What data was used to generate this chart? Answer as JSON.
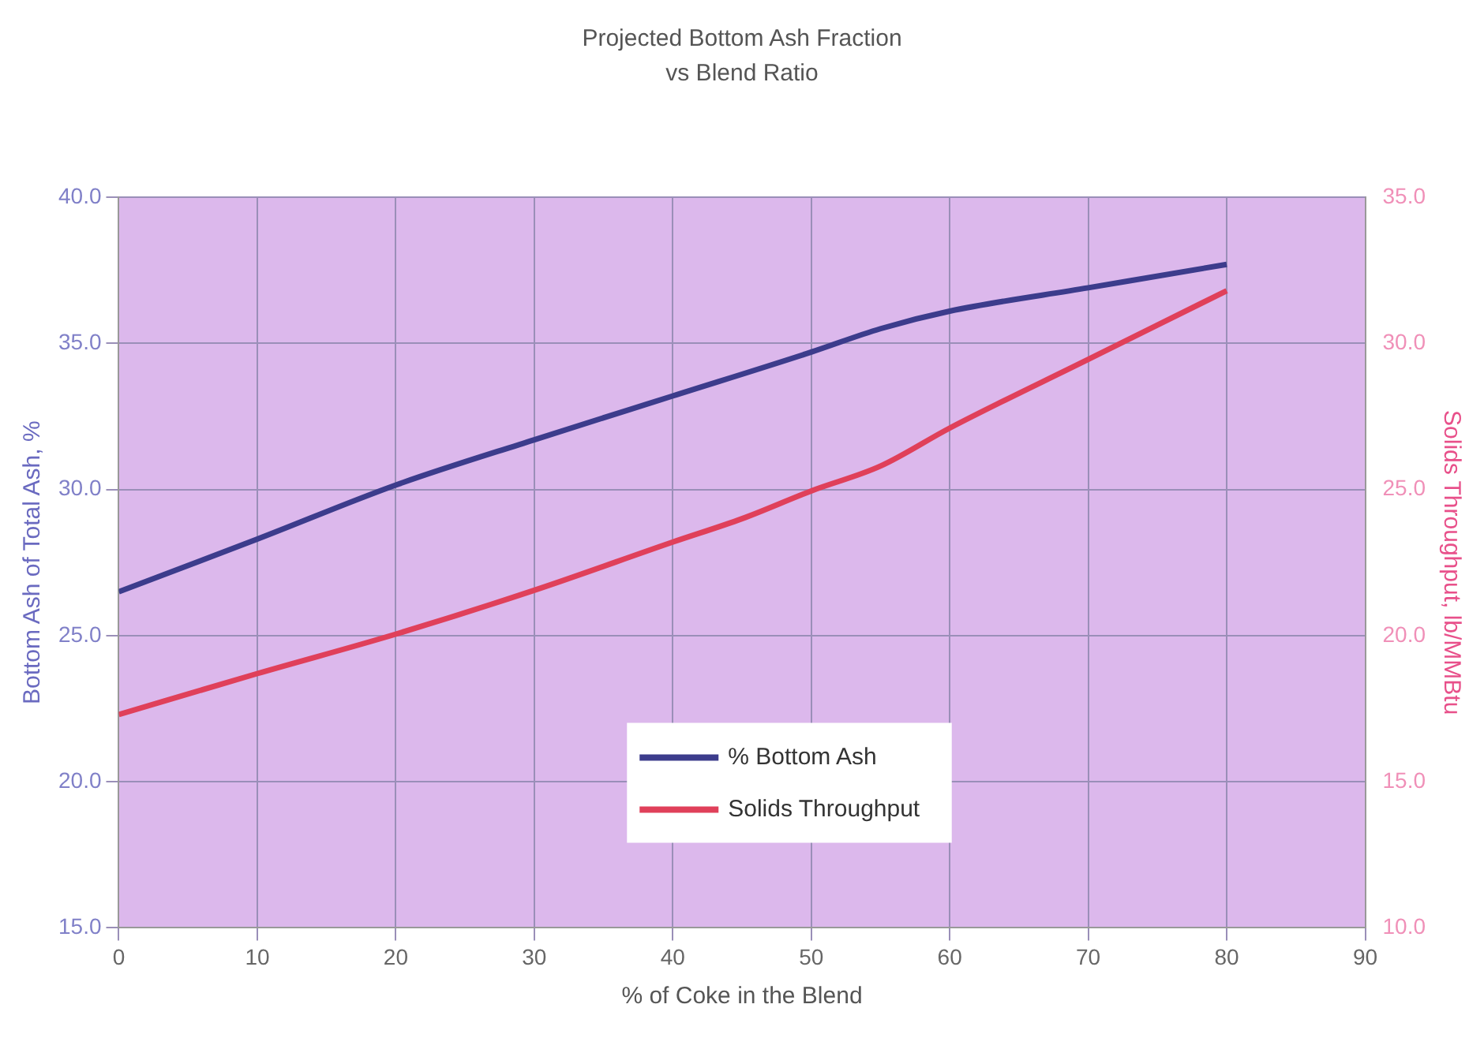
{
  "chart_data": {
    "type": "line",
    "title": "Projected Bottom Ash Fraction\nvs Blend Ratio",
    "xlabel": "% of Coke in the Blend",
    "ylabel": "Bottom Ash of Total Ash, %",
    "y2label": "Solids Throughput, lb/MMBtu",
    "xlim": [
      0,
      90
    ],
    "xticks": [
      0,
      10,
      20,
      30,
      40,
      50,
      60,
      70,
      80,
      90
    ],
    "ylim": [
      15,
      40
    ],
    "yticks": [
      {
        "value": 15,
        "label": "15.0"
      },
      {
        "value": 20,
        "label": "20.0"
      },
      {
        "value": 25,
        "label": "25.0"
      },
      {
        "value": 30,
        "label": "30.0"
      },
      {
        "value": 35,
        "label": "35.0"
      },
      {
        "value": 40,
        "label": "40.0"
      }
    ],
    "y2lim": [
      10,
      35
    ],
    "y2ticks": [
      {
        "value": 10,
        "label": "10.0"
      },
      {
        "value": 15,
        "label": "15.0"
      },
      {
        "value": 20,
        "label": "20.0"
      },
      {
        "value": 25,
        "label": "25.0"
      },
      {
        "value": 30,
        "label": "30.0"
      },
      {
        "value": 35,
        "label": "35.0"
      }
    ],
    "grid": true,
    "legend": "bottom",
    "marker": "none",
    "series": [
      {
        "name": "% Bottom Ash",
        "color": "#3c3c8c",
        "x": [
          0,
          10,
          20,
          30,
          40,
          50,
          55,
          60,
          70,
          80
        ],
        "values": [
          26.5,
          28.3,
          30.15,
          31.7,
          33.2,
          34.7,
          35.5,
          36.1,
          36.9,
          37.7
        ]
      },
      {
        "name": "Solids Throughput",
        "color": "#e0405a",
        "axis": "y2",
        "x": [
          0,
          10,
          20,
          30,
          40,
          45,
          50,
          55,
          60,
          70,
          80
        ],
        "values": [
          17.3,
          18.7,
          20.05,
          21.55,
          23.2,
          24.0,
          24.95,
          25.8,
          27.1,
          29.45,
          31.8
        ]
      }
    ]
  }
}
